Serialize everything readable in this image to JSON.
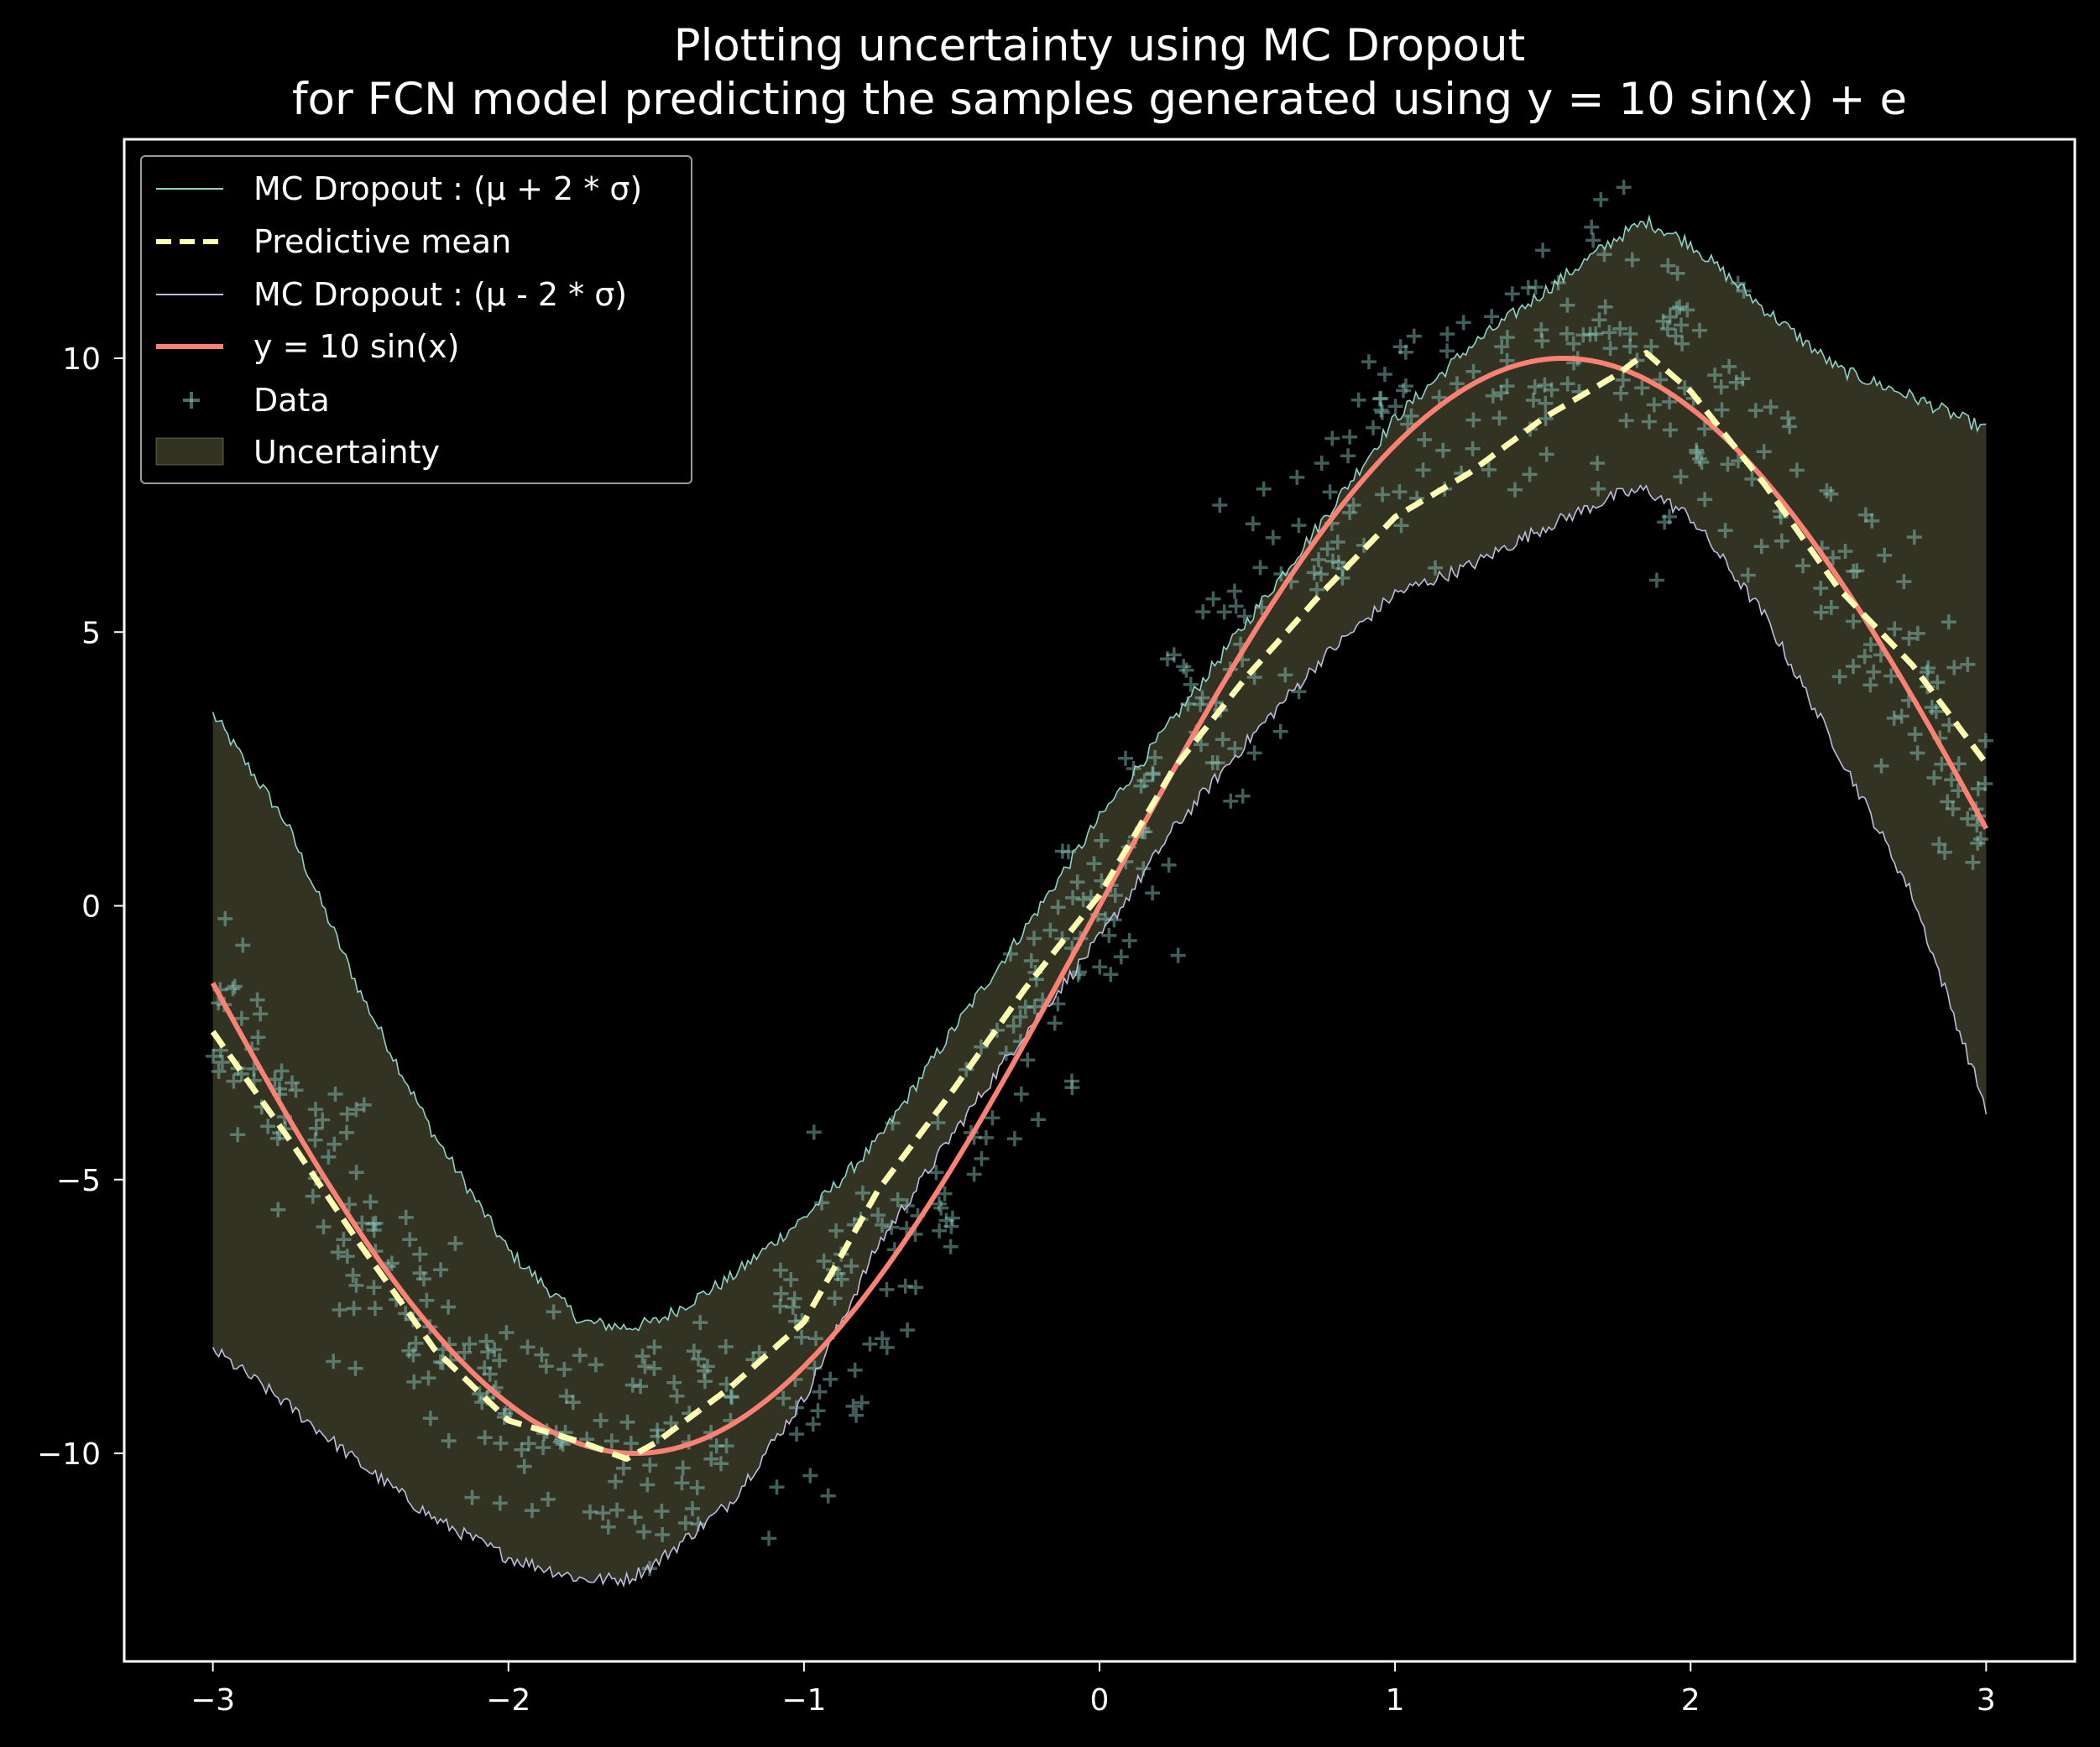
{
  "chart_data": {
    "type": "line",
    "title_lines": [
      "Plotting uncertainty using MC Dropout",
      "for FCN model predicting the samples generated using y = 10 sin(x) + e"
    ],
    "xlabel": "",
    "ylabel": "",
    "xlim": [
      -3.3,
      3.3
    ],
    "ylim": [
      -13.8,
      14.0
    ],
    "grid": false,
    "legend_position": "upper-left",
    "x_ticks": [
      {
        "value": -3,
        "label": "−3"
      },
      {
        "value": -2,
        "label": "−2"
      },
      {
        "value": -1,
        "label": "−1"
      },
      {
        "value": 0,
        "label": "0"
      },
      {
        "value": 1,
        "label": "1"
      },
      {
        "value": 2,
        "label": "2"
      },
      {
        "value": 3,
        "label": "3"
      }
    ],
    "y_ticks": [
      {
        "value": -10,
        "label": "−10"
      },
      {
        "value": -5,
        "label": "−5"
      },
      {
        "value": 0,
        "label": "0"
      },
      {
        "value": 5,
        "label": "5"
      },
      {
        "value": 10,
        "label": "10"
      }
    ],
    "colors": {
      "background": "#000000",
      "upper": "#8dd3c7",
      "mean": "#feffb3",
      "lower": "#bfbbd9",
      "truth": "#fa8174",
      "data": "#8dd3c7",
      "uncertainty_fill": "#feffb3",
      "axes": "#ffffff"
    },
    "x": [
      -3.0,
      -2.75,
      -2.5,
      -2.25,
      -2.0,
      -1.75,
      -1.6,
      -1.5,
      -1.25,
      -1.0,
      -0.75,
      -0.5,
      -0.25,
      0.0,
      0.25,
      0.5,
      0.75,
      1.0,
      1.25,
      1.5,
      1.75,
      1.85,
      2.0,
      2.25,
      2.5,
      2.75,
      3.0
    ],
    "series": [
      {
        "name": "MC Dropout : (μ + 2 * σ)",
        "role": "upper",
        "values": [
          3.5,
          1.5,
          -1.6,
          -4.2,
          -6.3,
          -7.6,
          -7.7,
          -7.6,
          -6.8,
          -5.7,
          -4.3,
          -2.3,
          -0.4,
          1.6,
          3.4,
          5.2,
          7.0,
          8.9,
          10.2,
          11.2,
          12.2,
          12.5,
          12.1,
          10.9,
          9.8,
          9.3,
          8.7
        ]
      },
      {
        "name": "Predictive mean",
        "role": "mean",
        "values": [
          -2.3,
          -4.2,
          -6.2,
          -8.1,
          -9.4,
          -9.8,
          -10.1,
          -9.8,
          -8.8,
          -7.6,
          -5.2,
          -3.4,
          -1.5,
          0.2,
          2.5,
          4.2,
          5.7,
          7.1,
          7.9,
          8.9,
          9.7,
          10.1,
          9.4,
          7.7,
          5.8,
          4.4,
          2.6
        ]
      },
      {
        "name": "MC Dropout : (μ - 2 * σ)",
        "role": "lower",
        "values": [
          -8.1,
          -9.1,
          -10.2,
          -11.2,
          -11.9,
          -12.3,
          -12.3,
          -12.0,
          -10.9,
          -9.0,
          -6.2,
          -4.2,
          -2.3,
          -0.6,
          1.4,
          3.0,
          4.5,
          5.7,
          6.2,
          6.9,
          7.5,
          7.6,
          7.1,
          5.3,
          2.8,
          0.2,
          -3.7
        ]
      },
      {
        "name": "y = 10 sin(x)",
        "role": "truth",
        "function": "10*sin(x)",
        "values": [
          -1.41,
          -3.82,
          -5.98,
          -7.78,
          -9.09,
          -9.84,
          -10.0,
          -9.97,
          -9.49,
          -8.41,
          -6.82,
          -4.79,
          -2.47,
          0.0,
          2.47,
          4.79,
          6.82,
          8.41,
          9.49,
          9.97,
          9.84,
          9.61,
          9.09,
          7.78,
          5.98,
          3.82,
          1.41
        ]
      }
    ],
    "scatter": {
      "name": "Data",
      "noise_std": 1.25,
      "count": 600,
      "x_range": [
        -3,
        3
      ]
    },
    "fill_between": {
      "name": "Uncertainty"
    }
  }
}
